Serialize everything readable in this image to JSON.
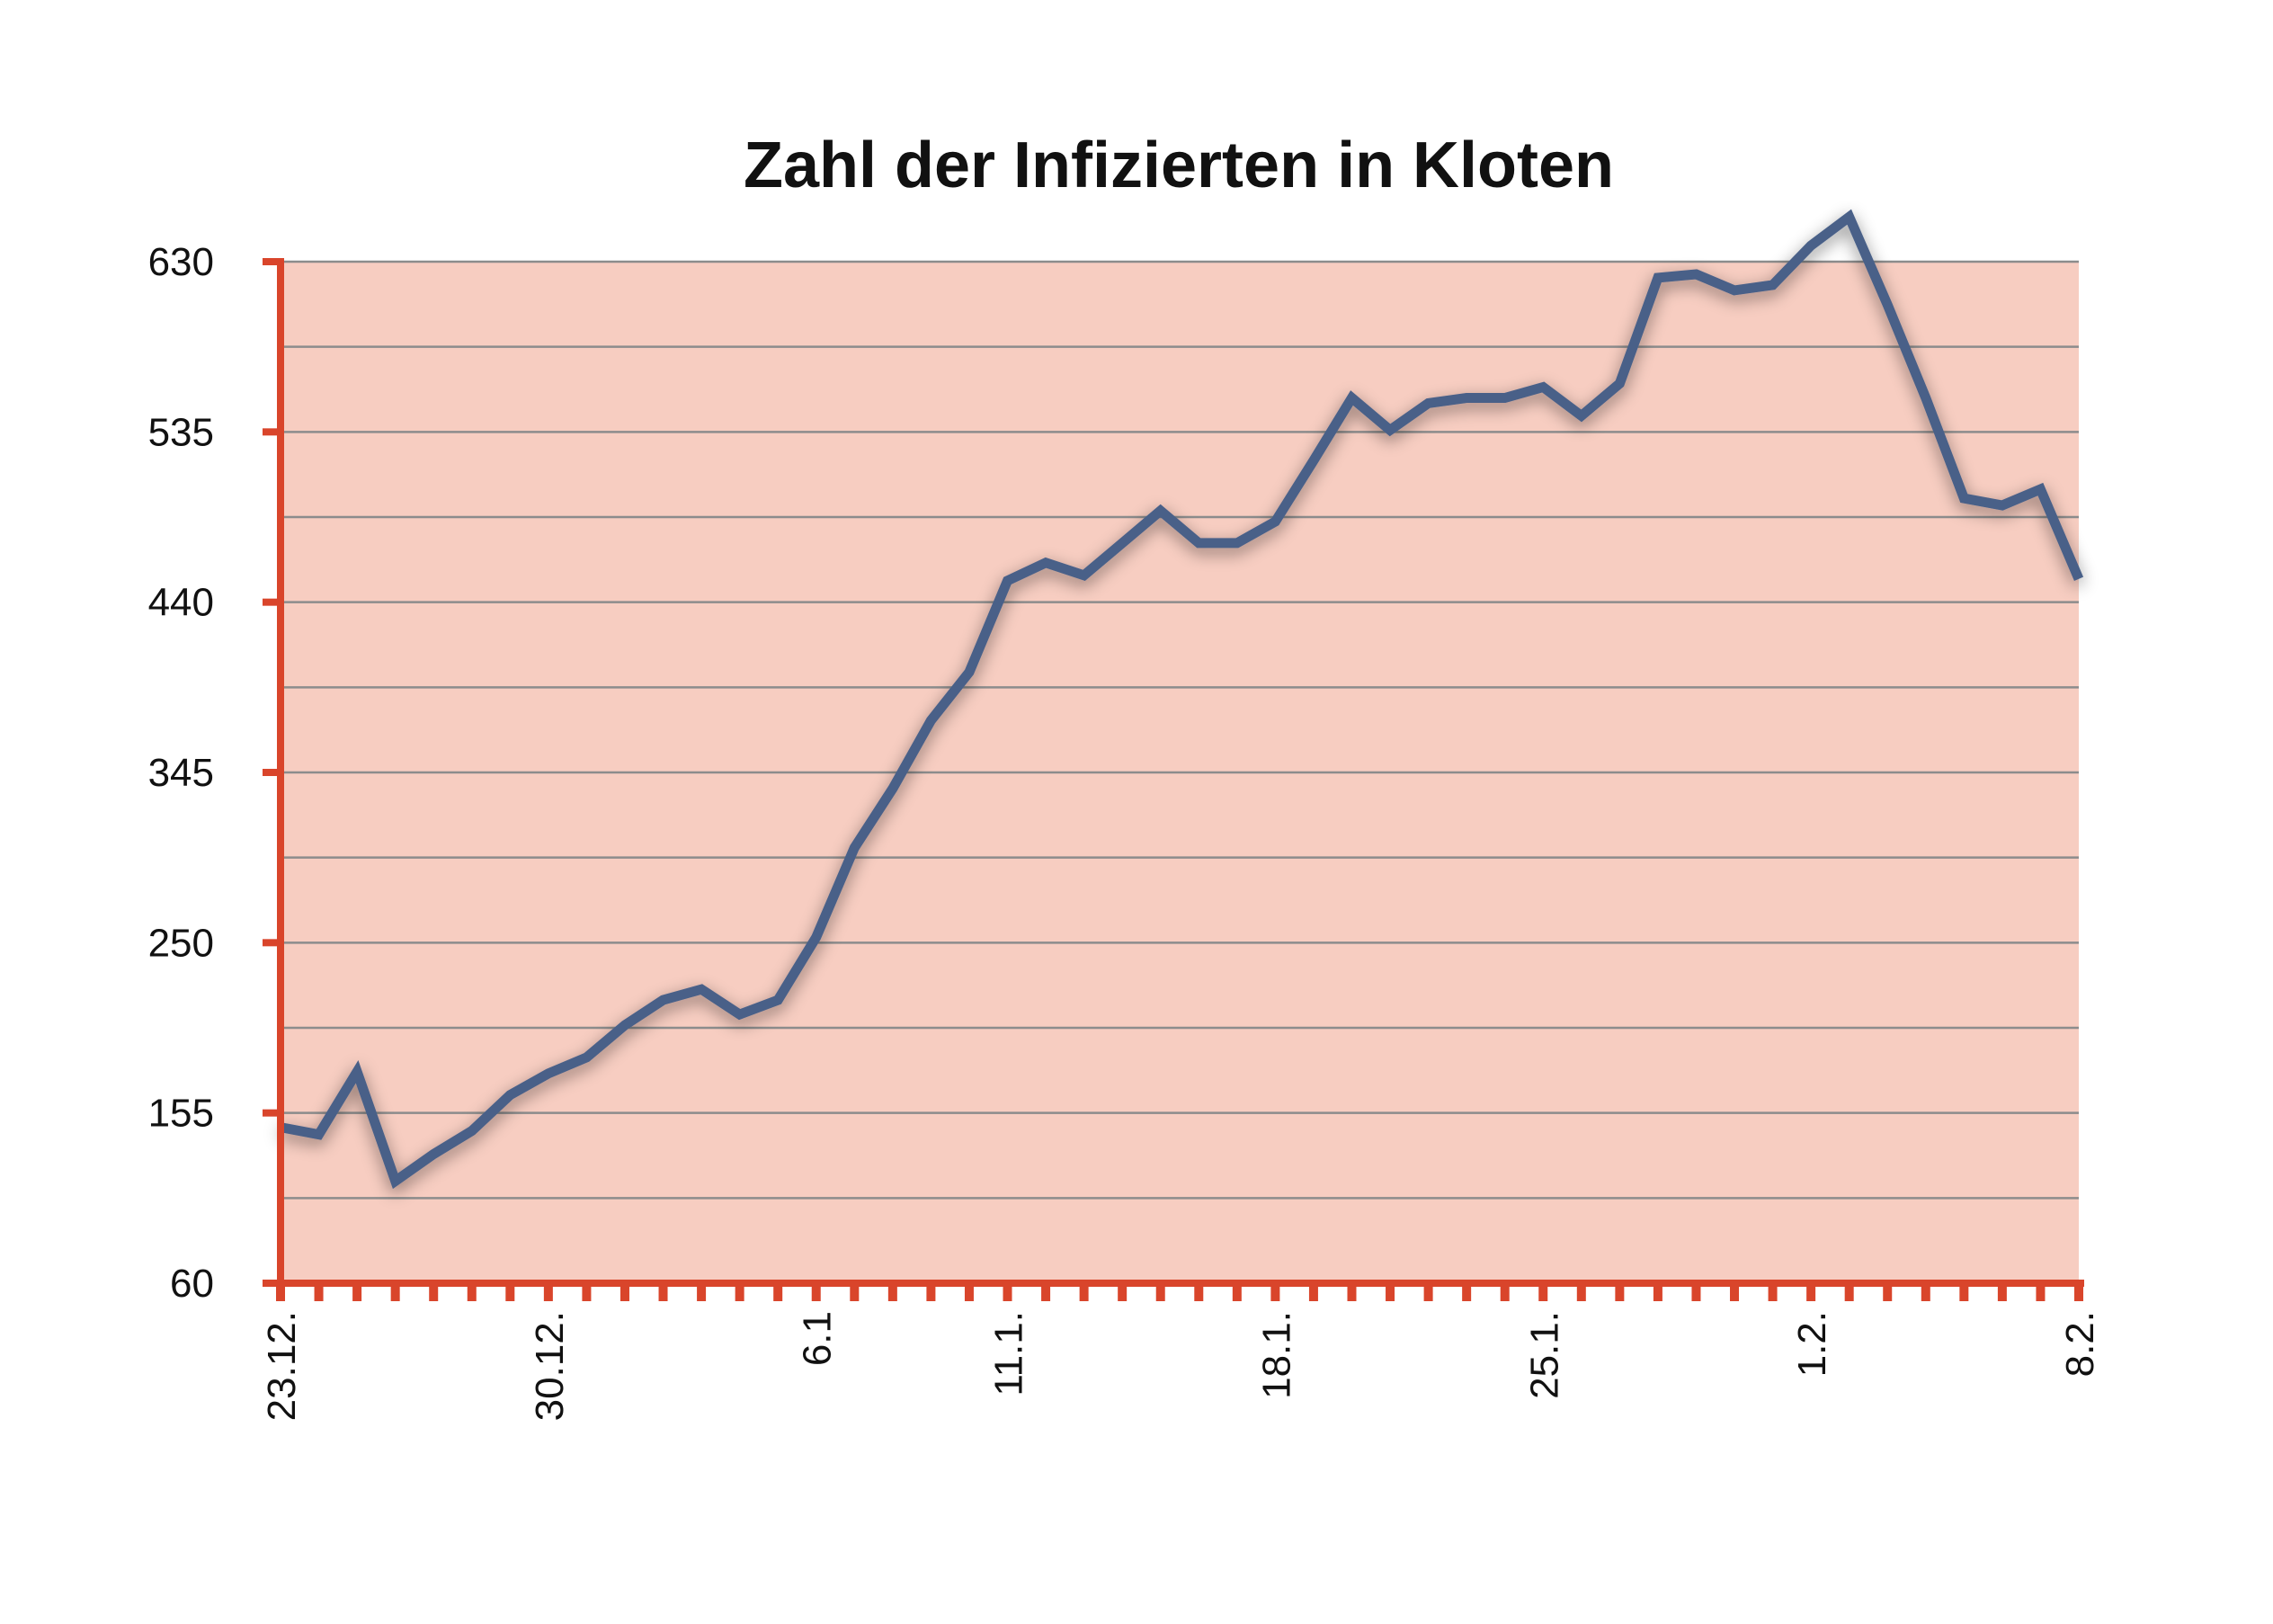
{
  "chart_data": {
    "type": "line",
    "title": "Zahl der Infizierten in Kloten",
    "xlabel": "",
    "ylabel": "",
    "ylim": [
      60,
      630
    ],
    "y_ticks": [
      60,
      155,
      250,
      345,
      440,
      535,
      630
    ],
    "y_gridline_step": 47.5,
    "grid": true,
    "x_ticks": [
      {
        "label": "23.12.",
        "index": 0
      },
      {
        "label": "30.12.",
        "index": 7
      },
      {
        "label": "6.1",
        "index": 14
      },
      {
        "label": "11.1.",
        "index": 19
      },
      {
        "label": "18.1.",
        "index": 26
      },
      {
        "label": "25.1.",
        "index": 33
      },
      {
        "label": "1.2.",
        "index": 40
      },
      {
        "label": "8.2.",
        "index": 47
      }
    ],
    "series": [
      {
        "values": [
          147,
          143,
          178,
          117,
          132,
          145,
          165,
          177,
          186,
          204,
          218,
          224,
          210,
          218,
          253,
          303,
          336,
          374,
          401,
          452,
          462,
          455,
          473,
          491,
          473,
          473,
          485,
          519,
          554,
          536,
          551,
          554,
          554,
          560,
          544,
          562,
          621,
          623,
          614,
          617,
          639,
          655,
          606,
          554,
          498,
          494,
          503,
          453
        ]
      }
    ],
    "colors": {
      "plot_background": "#f7cdc1",
      "axis": "#d9452b",
      "gridline": "#8c8c8c",
      "line": "#4a6188"
    }
  }
}
